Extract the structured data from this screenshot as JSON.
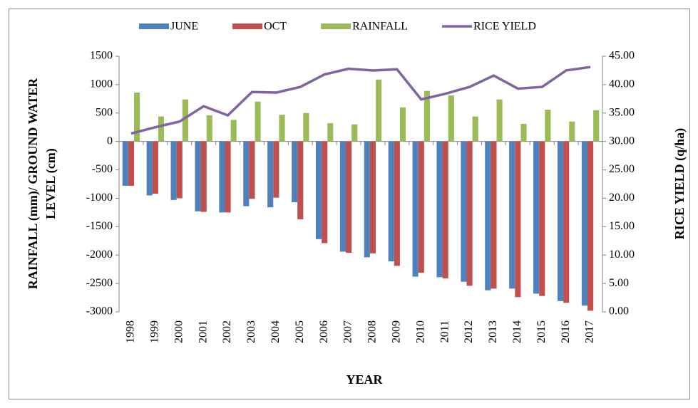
{
  "chart_data": {
    "type": "bar-line",
    "xlabel": "YEAR",
    "ylabel": [
      "RAINFALL (mm)/ GROUND WATER",
      "LEVEL (cm)"
    ],
    "y2label": "RICE YIELD (q/ha)",
    "categories": [
      "1998",
      "1999",
      "2000",
      "2001",
      "2002",
      "2003",
      "2004",
      "2005",
      "2006",
      "2007",
      "2008",
      "2009",
      "2010",
      "2011",
      "2012",
      "2013",
      "2014",
      "2015",
      "2016",
      "2017"
    ],
    "series": [
      {
        "name": "JUNE",
        "color": "#4f81bd",
        "type": "bar",
        "values": [
          -780,
          -950,
          -1030,
          -1230,
          -1250,
          -1140,
          -1160,
          -1070,
          -1720,
          -1940,
          -2040,
          -2110,
          -2380,
          -2390,
          -2470,
          -2620,
          -2590,
          -2680,
          -2810,
          -2890
        ]
      },
      {
        "name": "OCT",
        "color": "#c0504d",
        "type": "bar",
        "values": [
          -780,
          -920,
          -1000,
          -1240,
          -1250,
          -1010,
          -990,
          -1370,
          -1790,
          -1960,
          -1970,
          -2190,
          -2310,
          -2410,
          -2540,
          -2590,
          -2740,
          -2720,
          -2840,
          -2980
        ]
      },
      {
        "name": "RAINFALL",
        "color": "#9bbb59",
        "type": "bar",
        "values": [
          860,
          440,
          740,
          460,
          380,
          700,
          470,
          500,
          320,
          300,
          1090,
          600,
          890,
          810,
          440,
          740,
          310,
          560,
          350,
          550
        ]
      },
      {
        "name": "RICE YIELD",
        "color": "#8064a2",
        "type": "line",
        "axis": "y2",
        "values": [
          31.4,
          32.5,
          33.5,
          36.2,
          34.6,
          38.7,
          38.6,
          39.6,
          41.8,
          42.8,
          42.5,
          42.7,
          37.4,
          38.4,
          39.6,
          41.6,
          39.3,
          39.6,
          42.5,
          43.1
        ]
      }
    ],
    "ylim": [
      -3000,
      1500
    ],
    "yticks": [
      -3000,
      -2500,
      -2000,
      -1500,
      -1000,
      -500,
      0,
      500,
      1000,
      1500
    ],
    "y2lim": [
      0,
      45
    ],
    "y2ticks": [
      {
        "value": 0,
        "label": "0.00"
      },
      {
        "value": 5,
        "label": "5.00"
      },
      {
        "value": 10,
        "label": "10.00"
      },
      {
        "value": 15,
        "label": "15.00"
      },
      {
        "value": 20,
        "label": "20.00"
      },
      {
        "value": 25,
        "label": "25.00"
      },
      {
        "value": 30,
        "label": "30.00"
      },
      {
        "value": 35,
        "label": "35.00"
      },
      {
        "value": 40,
        "label": "40.00"
      },
      {
        "value": 45,
        "label": "45.00"
      }
    ],
    "legend": "top"
  }
}
